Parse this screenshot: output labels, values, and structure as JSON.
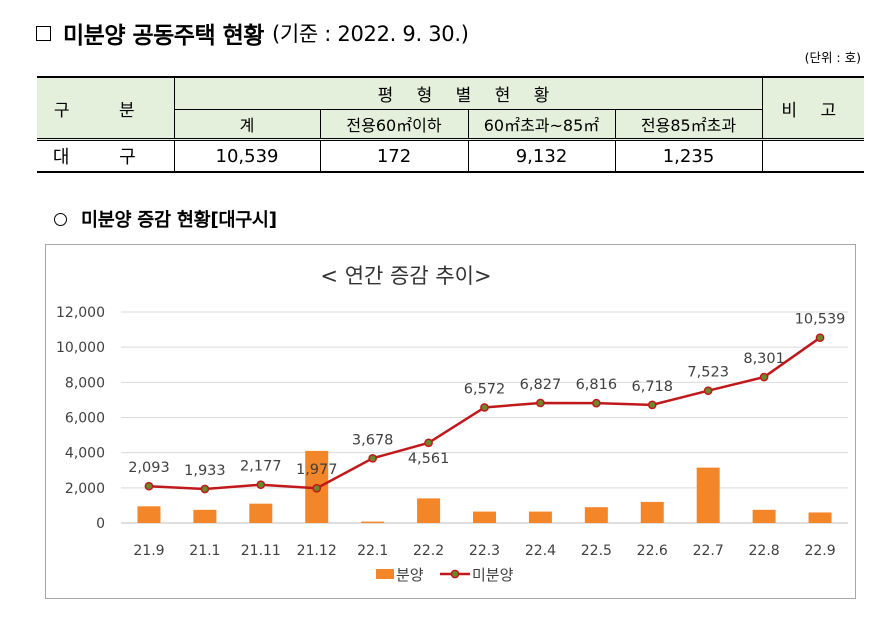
{
  "header": {
    "title": "미분양 공동주택 현황",
    "subtitle": "(기준 : 2022. 9. 30.)",
    "unit": "(단위 : 호)"
  },
  "table": {
    "col_gubun": "구 분",
    "group_header": "평 형 별 현 황",
    "col_bigo": "비 고",
    "sub_headers": [
      "계",
      "전용60㎡이하",
      "60㎡초과~85㎡",
      "전용85㎡초과"
    ],
    "rows": [
      {
        "label": "대 구",
        "values": [
          "10,539",
          "172",
          "9,132",
          "1,235"
        ],
        "note": ""
      }
    ]
  },
  "section": {
    "title": "미분양 증감 현황[대구시]"
  },
  "chart_data": {
    "type": "bar",
    "title": "< 연간 증감 추이>",
    "categories": [
      "21.9",
      "21.1",
      "21.11",
      "21.12",
      "22.1",
      "22.2",
      "22.3",
      "22.4",
      "22.5",
      "22.6",
      "22.7",
      "22.8",
      "22.9"
    ],
    "series": [
      {
        "name": "분양",
        "type": "bar",
        "color": "#f4862a",
        "values": [
          950,
          750,
          1100,
          4100,
          80,
          1400,
          650,
          650,
          900,
          1200,
          3150,
          750,
          600
        ]
      },
      {
        "name": "미분양",
        "type": "line",
        "color": "#c0191c",
        "marker_color": "#6a8a2a",
        "values": [
          2093,
          1933,
          2177,
          1977,
          3678,
          4561,
          6572,
          6827,
          6816,
          6718,
          7523,
          8301,
          10539
        ],
        "labels": [
          "2,093",
          "1,933",
          "2,177",
          "1,977",
          "3,678",
          "4,561",
          "6,572",
          "6,827",
          "6,816",
          "6,718",
          "7,523",
          "8,301",
          "10,539"
        ]
      }
    ],
    "ylim": [
      0,
      12000
    ],
    "yticks": [
      0,
      2000,
      4000,
      6000,
      8000,
      10000,
      12000
    ],
    "ytick_labels": [
      "0",
      "2,000",
      "4,000",
      "6,000",
      "8,000",
      "10,000",
      "12,000"
    ],
    "grid": true,
    "legend": "bottom"
  }
}
